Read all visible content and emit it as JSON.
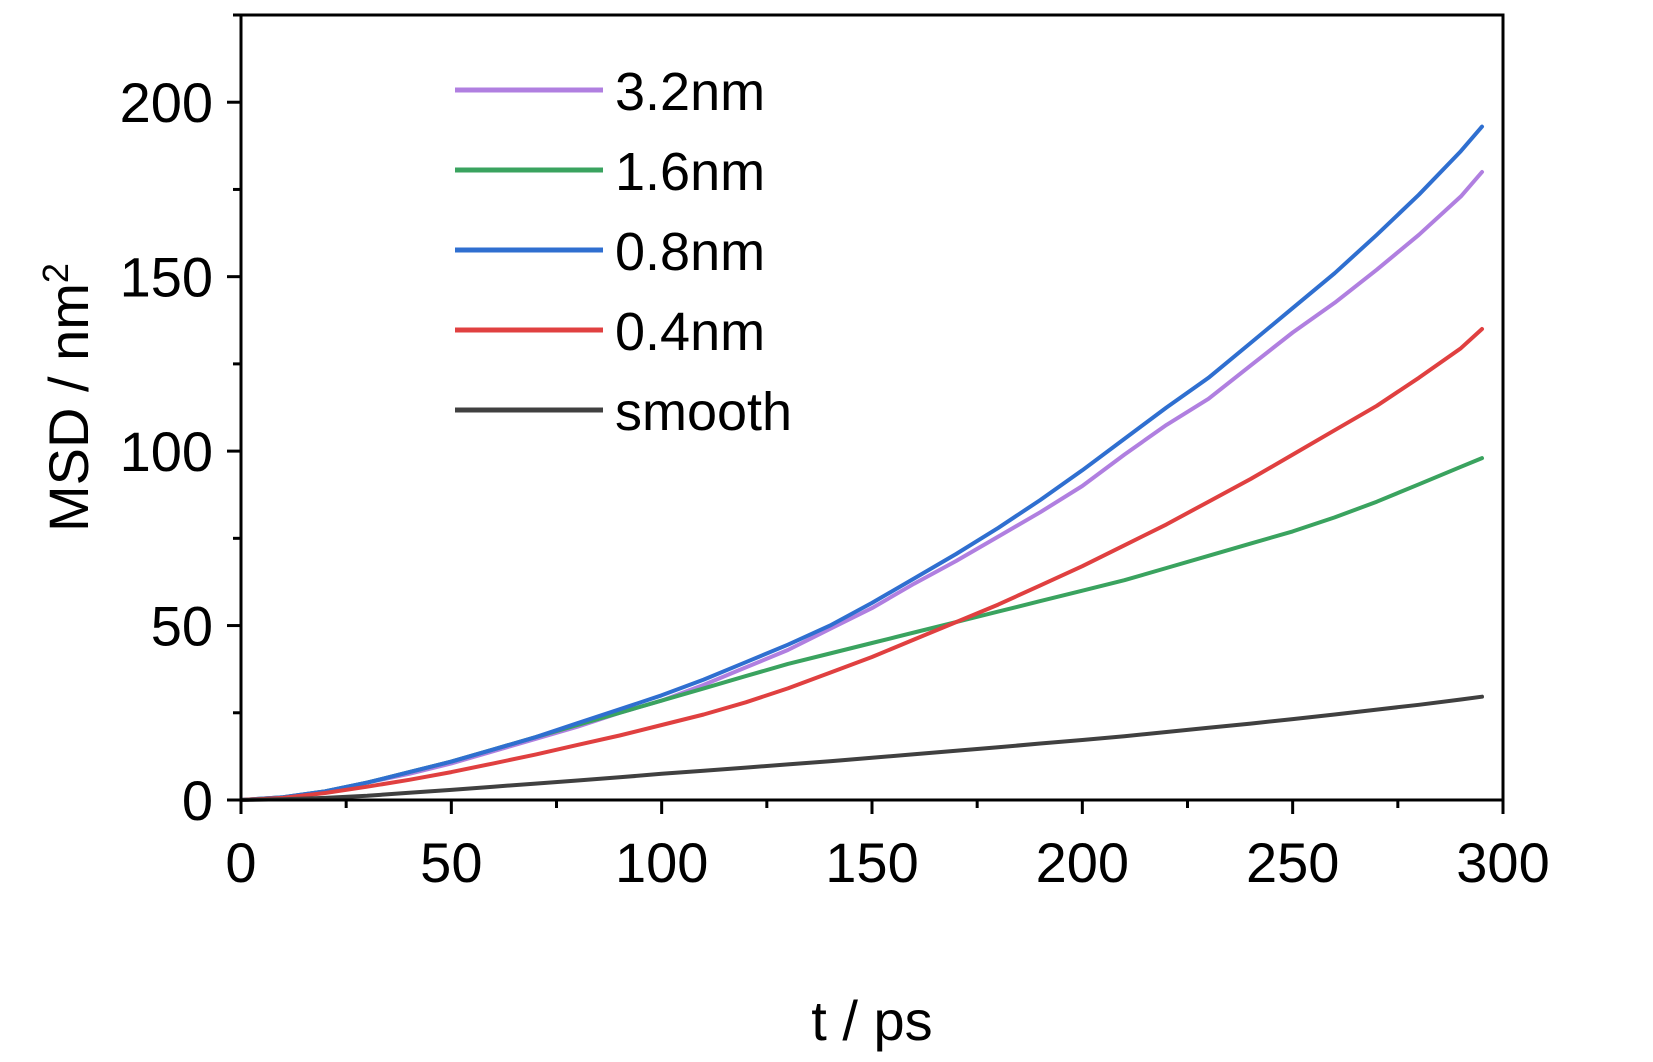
{
  "chart_data": {
    "type": "line",
    "xlabel": "t / ps",
    "ylabel": {
      "base": "MSD / nm",
      "sup": "2"
    },
    "xlim": [
      0,
      300
    ],
    "ylim": [
      0,
      225
    ],
    "xticks": [
      "0",
      "50",
      "100",
      "150",
      "200",
      "250",
      "300"
    ],
    "yticks": [
      "0",
      "50",
      "100",
      "150",
      "200"
    ],
    "grid": false,
    "legend_position": "top-left",
    "series": [
      {
        "name": "3.2nm",
        "color": "#b07fe0",
        "x": [
          0,
          10,
          20,
          30,
          40,
          50,
          60,
          70,
          80,
          90,
          100,
          110,
          120,
          130,
          140,
          150,
          160,
          170,
          180,
          190,
          200,
          210,
          220,
          230,
          240,
          250,
          260,
          270,
          280,
          290,
          295
        ],
        "y": [
          0,
          0.8,
          2.5,
          5,
          7.5,
          10.5,
          14,
          17.5,
          21,
          25,
          28.5,
          33,
          38,
          43,
          49,
          55,
          62,
          68.5,
          75.5,
          82.5,
          90,
          99,
          107.5,
          115,
          124.5,
          134,
          142.5,
          152,
          162,
          173,
          180
        ]
      },
      {
        "name": "1.6nm",
        "color": "#3aa35f",
        "x": [
          0,
          10,
          20,
          30,
          40,
          50,
          60,
          70,
          80,
          90,
          100,
          110,
          120,
          130,
          140,
          150,
          160,
          170,
          180,
          190,
          200,
          210,
          220,
          230,
          240,
          250,
          260,
          270,
          280,
          290,
          295
        ],
        "y": [
          0,
          0.8,
          2.5,
          5,
          8,
          11,
          14.5,
          18,
          21.5,
          25,
          28.5,
          32,
          35.5,
          39,
          42,
          45,
          48,
          51,
          54,
          57,
          60,
          63,
          66.5,
          70,
          73.5,
          77,
          81,
          85.5,
          90.5,
          95.5,
          98
        ]
      },
      {
        "name": "0.8nm",
        "color": "#2f6fd0",
        "x": [
          0,
          10,
          20,
          30,
          40,
          50,
          60,
          70,
          80,
          90,
          100,
          110,
          120,
          130,
          140,
          150,
          160,
          170,
          180,
          190,
          200,
          210,
          220,
          230,
          240,
          250,
          260,
          270,
          280,
          290,
          295
        ],
        "y": [
          0,
          0.8,
          2.5,
          5,
          8,
          11,
          14.5,
          18,
          22,
          26,
          30,
          34.5,
          39.5,
          44.5,
          50,
          56.5,
          63.5,
          70.5,
          78,
          86,
          94.5,
          103.5,
          112.5,
          121,
          131,
          141,
          151,
          162,
          173.5,
          186,
          193
        ]
      },
      {
        "name": "0.4nm",
        "color": "#e04040",
        "x": [
          0,
          10,
          20,
          30,
          40,
          50,
          60,
          70,
          80,
          90,
          100,
          110,
          120,
          130,
          140,
          150,
          160,
          170,
          180,
          190,
          200,
          210,
          220,
          230,
          240,
          250,
          260,
          270,
          280,
          290,
          295
        ],
        "y": [
          0,
          0.6,
          2,
          3.8,
          5.8,
          8,
          10.5,
          13,
          15.8,
          18.5,
          21.5,
          24.5,
          28,
          32,
          36.5,
          41,
          46,
          51,
          56,
          61.5,
          67,
          73,
          79,
          85.5,
          92,
          99,
          106,
          113,
          121,
          129.5,
          135
        ]
      },
      {
        "name": "smooth",
        "color": "#404040",
        "x": [
          0,
          10,
          20,
          30,
          40,
          50,
          60,
          70,
          80,
          90,
          100,
          110,
          120,
          130,
          140,
          150,
          160,
          170,
          180,
          190,
          200,
          210,
          220,
          230,
          240,
          250,
          260,
          270,
          280,
          290,
          295
        ],
        "y": [
          0,
          0.2,
          0.6,
          1.2,
          2.1,
          2.9,
          3.8,
          4.7,
          5.6,
          6.5,
          7.5,
          8.4,
          9.3,
          10.2,
          11.1,
          12.1,
          13.1,
          14.1,
          15.1,
          16.2,
          17.2,
          18.3,
          19.5,
          20.7,
          21.9,
          23.2,
          24.5,
          25.9,
          27.3,
          28.8,
          29.6
        ]
      }
    ]
  }
}
